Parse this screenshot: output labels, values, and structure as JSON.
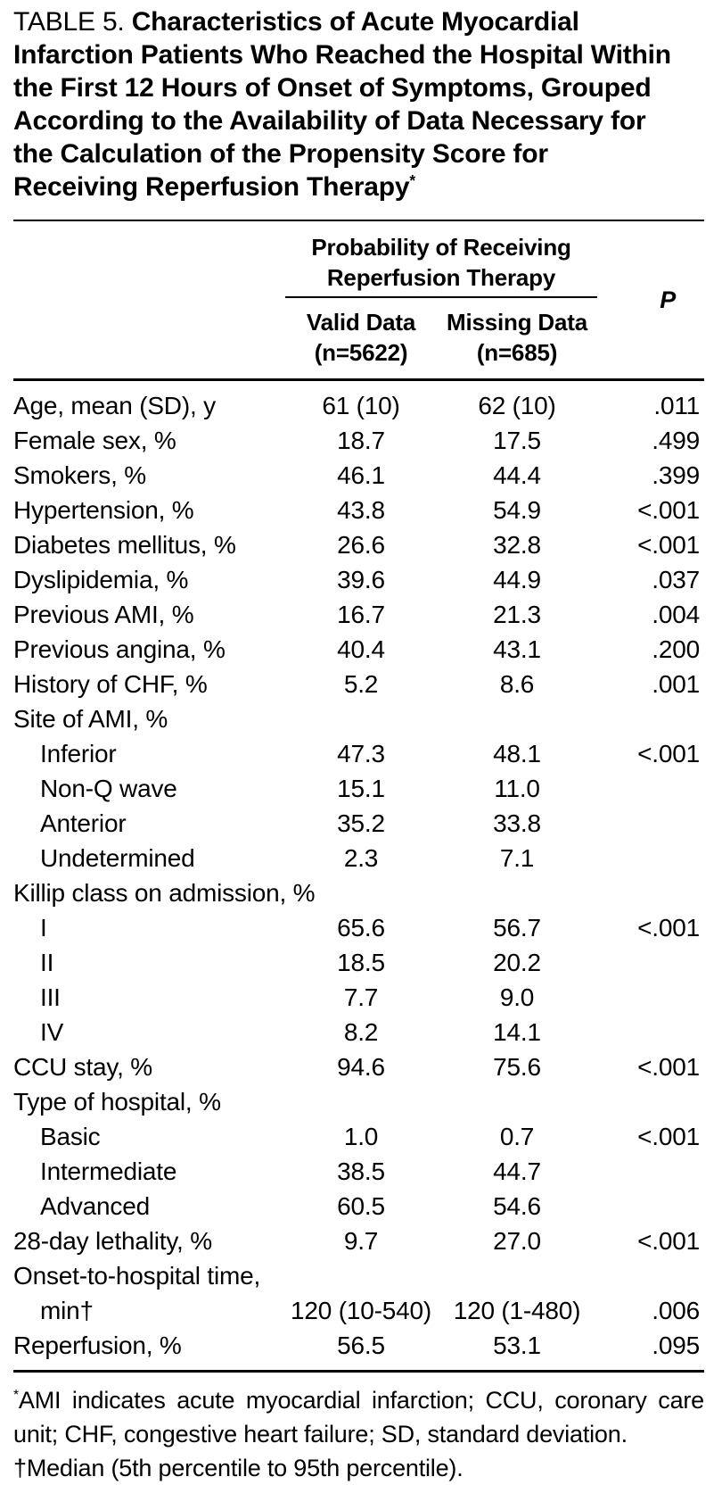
{
  "colors": {
    "background": "#ffffff",
    "text": "#000000",
    "rules": "#000000"
  },
  "title": {
    "label": "TABLE 5.",
    "text": "Characteristics of Acute Myocardial Infarction Patients Who Reached the Hospital Within the First 12 Hours of Onset of Symptoms, Grouped According to the Availability of Data Necessary for the Calculation of the Propensity Score for Receiving Reperfusion Therapy",
    "footnote_marker": "*"
  },
  "table": {
    "spanner_line1": "Probability of Receiving",
    "spanner_line2": "Reperfusion Therapy",
    "p_header": "P",
    "columns": [
      {
        "line1": "Valid Data",
        "line2": "(n=5622)"
      },
      {
        "line1": "Missing Data",
        "line2": "(n=685)"
      }
    ],
    "rows": [
      {
        "label": "Age, mean (SD), y",
        "indent": false,
        "valid": "61 (10)",
        "missing": "62 (10)",
        "p": ".011"
      },
      {
        "label": "Female sex, %",
        "indent": false,
        "valid": "18.7",
        "missing": "17.5",
        "p": ".499"
      },
      {
        "label": "Smokers, %",
        "indent": false,
        "valid": "46.1",
        "missing": "44.4",
        "p": ".399"
      },
      {
        "label": "Hypertension, %",
        "indent": false,
        "valid": "43.8",
        "missing": "54.9",
        "p": "<.001"
      },
      {
        "label": "Diabetes mellitus, %",
        "indent": false,
        "valid": "26.6",
        "missing": "32.8",
        "p": "<.001"
      },
      {
        "label": "Dyslipidemia, %",
        "indent": false,
        "valid": "39.6",
        "missing": "44.9",
        "p": ".037"
      },
      {
        "label": "Previous AMI, %",
        "indent": false,
        "valid": "16.7",
        "missing": "21.3",
        "p": ".004"
      },
      {
        "label": "Previous angina, %",
        "indent": false,
        "valid": "40.4",
        "missing": "43.1",
        "p": ".200"
      },
      {
        "label": "History of CHF, %",
        "indent": false,
        "valid": "5.2",
        "missing": "8.6",
        "p": ".001"
      },
      {
        "label": "Site of AMI, %",
        "indent": false,
        "valid": "",
        "missing": "",
        "p": ""
      },
      {
        "label": "Inferior",
        "indent": true,
        "valid": "47.3",
        "missing": "48.1",
        "p": "<.001"
      },
      {
        "label": "Non-Q wave",
        "indent": true,
        "valid": "15.1",
        "missing": "11.0",
        "p": ""
      },
      {
        "label": "Anterior",
        "indent": true,
        "valid": "35.2",
        "missing": "33.8",
        "p": ""
      },
      {
        "label": "Undetermined",
        "indent": true,
        "valid": "2.3",
        "missing": "7.1",
        "p": ""
      },
      {
        "label": "Killip class on admission, %",
        "indent": false,
        "valid": "",
        "missing": "",
        "p": ""
      },
      {
        "label": "I",
        "indent": true,
        "valid": "65.6",
        "missing": "56.7",
        "p": "<.001"
      },
      {
        "label": "II",
        "indent": true,
        "valid": "18.5",
        "missing": "20.2",
        "p": ""
      },
      {
        "label": "III",
        "indent": true,
        "valid": "7.7",
        "missing": "9.0",
        "p": ""
      },
      {
        "label": "IV",
        "indent": true,
        "valid": "8.2",
        "missing": "14.1",
        "p": ""
      },
      {
        "label": "CCU stay, %",
        "indent": false,
        "valid": "94.6",
        "missing": "75.6",
        "p": "<.001"
      },
      {
        "label": "Type of hospital, %",
        "indent": false,
        "valid": "",
        "missing": "",
        "p": ""
      },
      {
        "label": "Basic",
        "indent": true,
        "valid": "1.0",
        "missing": "0.7",
        "p": "<.001"
      },
      {
        "label": "Intermediate",
        "indent": true,
        "valid": "38.5",
        "missing": "44.7",
        "p": ""
      },
      {
        "label": "Advanced",
        "indent": true,
        "valid": "60.5",
        "missing": "54.6",
        "p": ""
      },
      {
        "label": "28-day lethality, %",
        "indent": false,
        "valid": "9.7",
        "missing": "27.0",
        "p": "<.001"
      },
      {
        "label": "Onset-to-hospital time,",
        "indent": false,
        "valid": "",
        "missing": "",
        "p": ""
      },
      {
        "label": "min†",
        "indent": true,
        "valid": "120 (10-540)",
        "missing": "120 (1-480)",
        "p": ".006"
      },
      {
        "label": "Reperfusion, %",
        "indent": false,
        "valid": "56.5",
        "missing": "53.1",
        "p": ".095"
      }
    ]
  },
  "footnotes": [
    {
      "marker": "*",
      "text": "AMI indicates acute myocardial infarction; CCU, coronary care unit; CHF, congestive heart failure; SD, standard deviation."
    },
    {
      "marker": "†",
      "text": "Median (5th percentile to 95th percentile)."
    }
  ]
}
